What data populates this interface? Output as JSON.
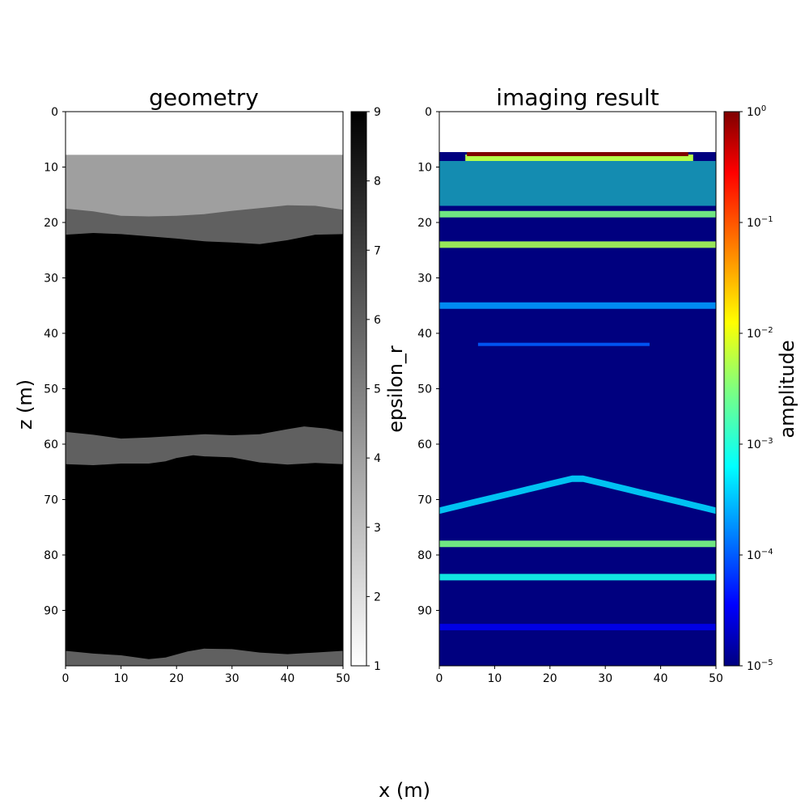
{
  "figure": {
    "shared_ylabel": "z (m)",
    "shared_xlabel": "x (m)"
  },
  "chart_data": [
    {
      "type": "heatmap",
      "title": "geometry",
      "xlabel": "x (m)",
      "ylabel": "z (m)",
      "xlim": [
        0,
        50
      ],
      "ylim": [
        0,
        100
      ],
      "y_inverted": true,
      "x_ticks": [
        0,
        10,
        20,
        30,
        40,
        50
      ],
      "y_ticks": [
        0,
        10,
        20,
        30,
        40,
        50,
        60,
        70,
        80,
        90
      ],
      "colormap": "gray_r",
      "colorbar": {
        "label": "epsilon_r",
        "range": [
          1,
          9
        ],
        "ticks": [
          1,
          2,
          3,
          4,
          5,
          6,
          7,
          8,
          9
        ],
        "scale": "linear"
      },
      "layers": [
        {
          "name": "air",
          "epsilon_r": 1,
          "top_depth": [
            [
              0,
              0
            ],
            [
              50,
              0
            ]
          ]
        },
        {
          "name": "layer 1",
          "epsilon_r": 4,
          "top_depth": [
            [
              0,
              7.8
            ],
            [
              50,
              7.8
            ]
          ]
        },
        {
          "name": "layer 2",
          "epsilon_r": 6,
          "top_depth": [
            [
              0,
              17.5
            ],
            [
              5,
              18
            ],
            [
              10,
              18.8
            ],
            [
              15,
              18.9
            ],
            [
              20,
              18.8
            ],
            [
              25,
              18.5
            ],
            [
              30,
              17.9
            ],
            [
              35,
              17.4
            ],
            [
              40,
              16.9
            ],
            [
              45,
              17
            ],
            [
              50,
              17.7
            ]
          ]
        },
        {
          "name": "layer 3",
          "epsilon_r": 9,
          "top_depth": [
            [
              0,
              22.2
            ],
            [
              5,
              21.9
            ],
            [
              10,
              22.1
            ],
            [
              15,
              22.5
            ],
            [
              20,
              22.9
            ],
            [
              25,
              23.4
            ],
            [
              30,
              23.6
            ],
            [
              35,
              23.9
            ],
            [
              40,
              23.2
            ],
            [
              45,
              22.2
            ],
            [
              50,
              22.1
            ]
          ]
        },
        {
          "name": "layer 4",
          "epsilon_r": 6,
          "top_depth": [
            [
              0,
              57.8
            ],
            [
              5,
              58.3
            ],
            [
              10,
              59
            ],
            [
              15,
              58.8
            ],
            [
              20,
              58.5
            ],
            [
              25,
              58.2
            ],
            [
              30,
              58.4
            ],
            [
              35,
              58.2
            ],
            [
              40,
              57.3
            ],
            [
              43,
              56.8
            ],
            [
              47,
              57.2
            ],
            [
              50,
              57.8
            ]
          ]
        },
        {
          "name": "layer 5",
          "epsilon_r": 9,
          "top_depth": [
            [
              0,
              63.6
            ],
            [
              5,
              63.8
            ],
            [
              10,
              63.5
            ],
            [
              15,
              63.5
            ],
            [
              18,
              63.1
            ],
            [
              20,
              62.5
            ],
            [
              23,
              62
            ],
            [
              25,
              62.2
            ],
            [
              30,
              62.4
            ],
            [
              35,
              63.3
            ],
            [
              40,
              63.7
            ],
            [
              45,
              63.4
            ],
            [
              50,
              63.6
            ]
          ]
        },
        {
          "name": "layer 6",
          "epsilon_r": 6,
          "top_depth": [
            [
              0,
              97.3
            ],
            [
              5,
              97.8
            ],
            [
              10,
              98.1
            ],
            [
              15,
              98.8
            ],
            [
              18,
              98.5
            ],
            [
              22,
              97.4
            ],
            [
              25,
              96.9
            ],
            [
              30,
              97
            ],
            [
              35,
              97.6
            ],
            [
              40,
              97.9
            ],
            [
              45,
              97.6
            ],
            [
              50,
              97.3
            ]
          ]
        }
      ]
    },
    {
      "type": "heatmap",
      "title": "imaging result",
      "xlabel": "x (m)",
      "ylabel": "",
      "xlim": [
        0,
        50
      ],
      "ylim": [
        0,
        100
      ],
      "y_inverted": true,
      "x_ticks": [
        0,
        10,
        20,
        30,
        40,
        50
      ],
      "y_ticks": [
        0,
        10,
        20,
        30,
        40,
        50,
        60,
        70,
        80,
        90
      ],
      "colormap": "jet",
      "colorbar": {
        "label": "amplitude",
        "range": [
          1e-05,
          1
        ],
        "scale": "log",
        "ticks": [
          {
            "value": 1,
            "base": "10",
            "exp": "0"
          },
          {
            "value": 0.1,
            "base": "10",
            "exp": "−1"
          },
          {
            "value": 0.01,
            "base": "10",
            "exp": "−2"
          },
          {
            "value": 0.001,
            "base": "10",
            "exp": "−3"
          },
          {
            "value": 0.0001,
            "base": "10",
            "exp": "−4"
          },
          {
            "value": 1e-05,
            "base": "10",
            "exp": "−5"
          }
        ]
      },
      "data_start_depth": 7.3,
      "features": [
        {
          "name": "surface source line",
          "depth": 7.3,
          "x_range": [
            5,
            45
          ],
          "amplitude": 1
        },
        {
          "name": "reflection 1",
          "depth": 18.5,
          "amplitude": 0.003
        },
        {
          "name": "reflection 2",
          "depth": 24,
          "amplitude": 0.005
        },
        {
          "name": "reflection 3",
          "depth": 35,
          "amplitude": 0.0002
        },
        {
          "name": "reflection 4",
          "depth": 42,
          "amplitude": 0.0001
        },
        {
          "name": "bowl artifact",
          "depth": 72,
          "amplitude": 0.0004
        },
        {
          "name": "reflection 5",
          "depth": 78,
          "amplitude": 0.003
        },
        {
          "name": "reflection 6",
          "depth": 84,
          "amplitude": 0.0008
        },
        {
          "name": "reflection 7",
          "depth": 93,
          "amplitude": 3e-05
        }
      ]
    }
  ]
}
